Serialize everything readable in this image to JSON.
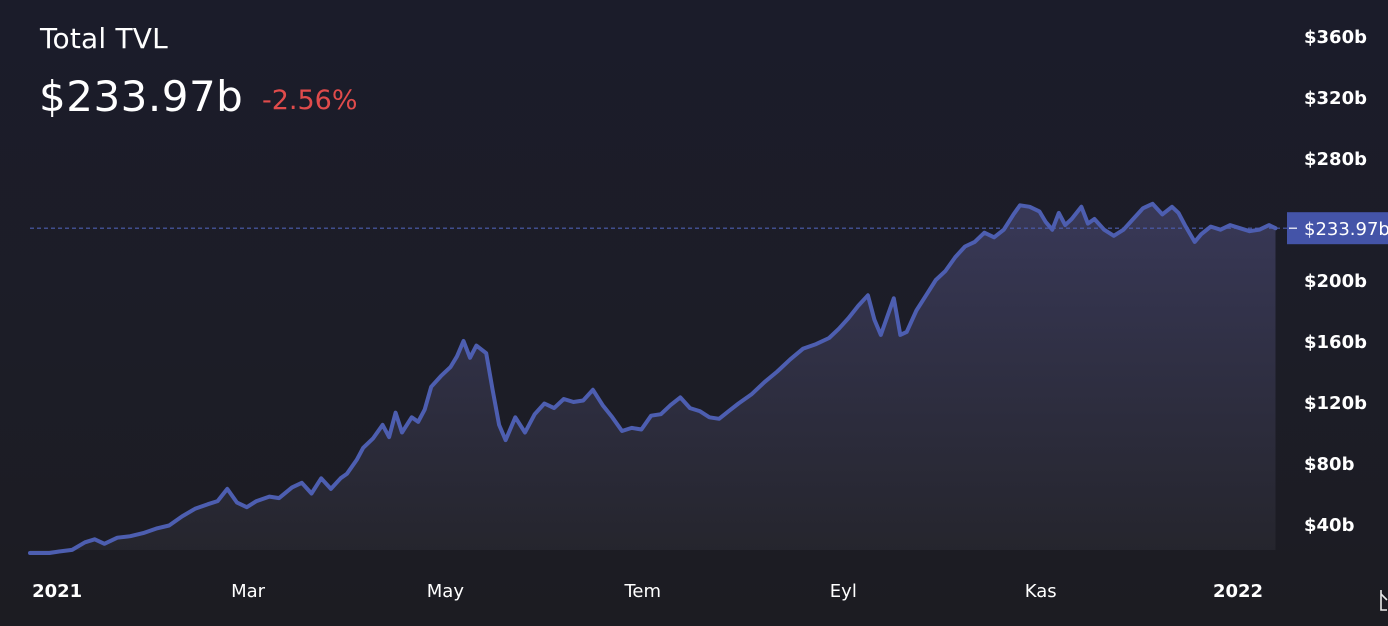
{
  "header": {
    "title": "Total TVL",
    "value": "$233.97b",
    "change": "-2.56%"
  },
  "colors": {
    "line": "#4d5eb0",
    "change_negative": "#e04b4b",
    "last_label_bg": "#4454a8"
  },
  "chart_data": {
    "type": "area",
    "x_ticks": [
      {
        "label": "2021",
        "date": "2021-01-01",
        "bold": true
      },
      {
        "label": "Mar",
        "date": "2021-03-01",
        "bold": false
      },
      {
        "label": "May",
        "date": "2021-05-01",
        "bold": false
      },
      {
        "label": "Tem",
        "date": "2021-07-01",
        "bold": false
      },
      {
        "label": "Eyl",
        "date": "2021-09-01",
        "bold": false
      },
      {
        "label": "Kas",
        "date": "2021-11-01",
        "bold": false
      },
      {
        "label": "2022",
        "date": "2022-01-01",
        "bold": true
      }
    ],
    "y_ticks": [
      {
        "label": "$40b",
        "value": 40
      },
      {
        "label": "$80b",
        "value": 80
      },
      {
        "label": "$120b",
        "value": 120
      },
      {
        "label": "$160b",
        "value": 160
      },
      {
        "label": "$200b",
        "value": 200
      },
      {
        "label": "$280b",
        "value": 280
      },
      {
        "label": "$320b",
        "value": 320
      },
      {
        "label": "$360b",
        "value": 360
      }
    ],
    "ylim": [
      16,
      370
    ],
    "xlim": [
      "2020-12-27",
      "2022-01-18"
    ],
    "last_value_label": "$233.97b",
    "last_value": 233.97,
    "points": [
      [
        "2020-12-27",
        21
      ],
      [
        "2021-01-02",
        21
      ],
      [
        "2021-01-05",
        22
      ],
      [
        "2021-01-09",
        23
      ],
      [
        "2021-01-13",
        28
      ],
      [
        "2021-01-16",
        30
      ],
      [
        "2021-01-19",
        27
      ],
      [
        "2021-01-23",
        31
      ],
      [
        "2021-01-27",
        32
      ],
      [
        "2021-01-31",
        34
      ],
      [
        "2021-02-04",
        37
      ],
      [
        "2021-02-08",
        39
      ],
      [
        "2021-02-12",
        45
      ],
      [
        "2021-02-16",
        50
      ],
      [
        "2021-02-20",
        53
      ],
      [
        "2021-02-23",
        55
      ],
      [
        "2021-02-26",
        63
      ],
      [
        "2021-03-01",
        54
      ],
      [
        "2021-03-04",
        51
      ],
      [
        "2021-03-07",
        55
      ],
      [
        "2021-03-11",
        58
      ],
      [
        "2021-03-14",
        57
      ],
      [
        "2021-03-18",
        64
      ],
      [
        "2021-03-21",
        67
      ],
      [
        "2021-03-24",
        60
      ],
      [
        "2021-03-27",
        70
      ],
      [
        "2021-03-30",
        63
      ],
      [
        "2021-04-02",
        70
      ],
      [
        "2021-04-04",
        73
      ],
      [
        "2021-04-07",
        82
      ],
      [
        "2021-04-09",
        90
      ],
      [
        "2021-04-12",
        96
      ],
      [
        "2021-04-15",
        105
      ],
      [
        "2021-04-17",
        97
      ],
      [
        "2021-04-19",
        113
      ],
      [
        "2021-04-21",
        100
      ],
      [
        "2021-04-24",
        110
      ],
      [
        "2021-04-26",
        107
      ],
      [
        "2021-04-28",
        115
      ],
      [
        "2021-04-30",
        130
      ],
      [
        "2021-05-03",
        137
      ],
      [
        "2021-05-06",
        143
      ],
      [
        "2021-05-08",
        150
      ],
      [
        "2021-05-10",
        160
      ],
      [
        "2021-05-12",
        149
      ],
      [
        "2021-05-14",
        157
      ],
      [
        "2021-05-17",
        152
      ],
      [
        "2021-05-19",
        128
      ],
      [
        "2021-05-21",
        105
      ],
      [
        "2021-05-23",
        95
      ],
      [
        "2021-05-26",
        110
      ],
      [
        "2021-05-29",
        100
      ],
      [
        "2021-06-01",
        112
      ],
      [
        "2021-06-04",
        119
      ],
      [
        "2021-06-07",
        116
      ],
      [
        "2021-06-10",
        122
      ],
      [
        "2021-06-13",
        120
      ],
      [
        "2021-06-16",
        121
      ],
      [
        "2021-06-19",
        128
      ],
      [
        "2021-06-22",
        118
      ],
      [
        "2021-06-25",
        110
      ],
      [
        "2021-06-28",
        101
      ],
      [
        "2021-07-01",
        103
      ],
      [
        "2021-07-04",
        102
      ],
      [
        "2021-07-07",
        111
      ],
      [
        "2021-07-10",
        112
      ],
      [
        "2021-07-13",
        118
      ],
      [
        "2021-07-16",
        123
      ],
      [
        "2021-07-19",
        116
      ],
      [
        "2021-07-22",
        114
      ],
      [
        "2021-07-25",
        110
      ],
      [
        "2021-07-28",
        109
      ],
      [
        "2021-07-31",
        114
      ],
      [
        "2021-08-03",
        119
      ],
      [
        "2021-08-07",
        125
      ],
      [
        "2021-08-11",
        133
      ],
      [
        "2021-08-15",
        140
      ],
      [
        "2021-08-19",
        148
      ],
      [
        "2021-08-23",
        155
      ],
      [
        "2021-08-27",
        158
      ],
      [
        "2021-08-31",
        162
      ],
      [
        "2021-09-03",
        168
      ],
      [
        "2021-09-06",
        175
      ],
      [
        "2021-09-09",
        183
      ],
      [
        "2021-09-12",
        190
      ],
      [
        "2021-09-14",
        174
      ],
      [
        "2021-09-16",
        164
      ],
      [
        "2021-09-18",
        176
      ],
      [
        "2021-09-20",
        188
      ],
      [
        "2021-09-22",
        164
      ],
      [
        "2021-09-24",
        166
      ],
      [
        "2021-09-27",
        180
      ],
      [
        "2021-09-30",
        190
      ],
      [
        "2021-10-03",
        200
      ],
      [
        "2021-10-06",
        206
      ],
      [
        "2021-10-09",
        215
      ],
      [
        "2021-10-12",
        222
      ],
      [
        "2021-10-15",
        225
      ],
      [
        "2021-10-18",
        231
      ],
      [
        "2021-10-21",
        228
      ],
      [
        "2021-10-24",
        233
      ],
      [
        "2021-10-27",
        243
      ],
      [
        "2021-10-29",
        249
      ],
      [
        "2021-11-01",
        248
      ],
      [
        "2021-11-04",
        245
      ],
      [
        "2021-11-06",
        238
      ],
      [
        "2021-11-08",
        233
      ],
      [
        "2021-11-10",
        244
      ],
      [
        "2021-11-12",
        236
      ],
      [
        "2021-11-14",
        240
      ],
      [
        "2021-11-17",
        248
      ],
      [
        "2021-11-19",
        237
      ],
      [
        "2021-11-21",
        240
      ],
      [
        "2021-11-24",
        233
      ],
      [
        "2021-11-27",
        229
      ],
      [
        "2021-11-30",
        233
      ],
      [
        "2021-12-03",
        240
      ],
      [
        "2021-12-06",
        247
      ],
      [
        "2021-12-09",
        250
      ],
      [
        "2021-12-12",
        243
      ],
      [
        "2021-12-15",
        248
      ],
      [
        "2021-12-17",
        244
      ],
      [
        "2021-12-19",
        236
      ],
      [
        "2021-12-22",
        225
      ],
      [
        "2021-12-24",
        230
      ],
      [
        "2021-12-27",
        235
      ],
      [
        "2021-12-30",
        233
      ],
      [
        "2022-01-02",
        236
      ],
      [
        "2022-01-05",
        234
      ],
      [
        "2022-01-08",
        232
      ],
      [
        "2022-01-11",
        233
      ],
      [
        "2022-01-14",
        236
      ],
      [
        "2022-01-16",
        233.97
      ]
    ]
  }
}
